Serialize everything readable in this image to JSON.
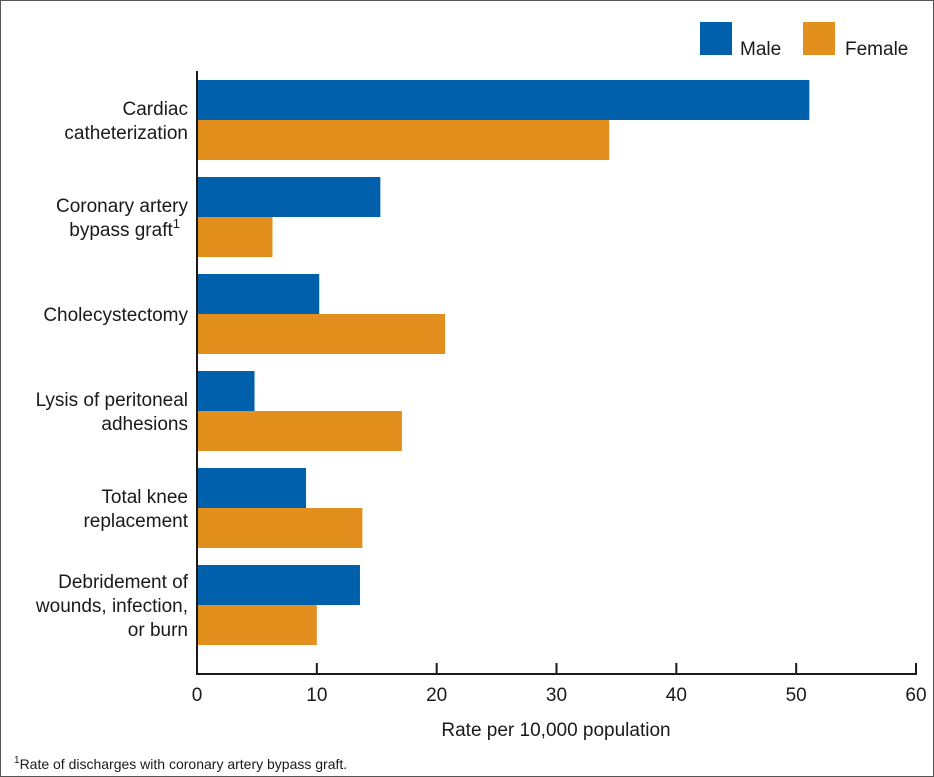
{
  "chart_data": {
    "type": "bar",
    "orientation": "horizontal",
    "categories": [
      [
        "Cardiac",
        "catheterization"
      ],
      [
        "Coronary artery",
        "bypass graft"
      ],
      [
        "Cholecystectomy"
      ],
      [
        "Lysis of peritoneal",
        "adhesions"
      ],
      [
        "Total knee",
        "replacement"
      ],
      [
        "Debridement of",
        "wounds, infection,",
        "or burn"
      ]
    ],
    "category_superscripts": [
      "",
      "1",
      "",
      "",
      "",
      ""
    ],
    "series": [
      {
        "name": "Male",
        "color": "#0060ab",
        "values": [
          51.1,
          15.3,
          10.2,
          4.8,
          9.1,
          13.6
        ]
      },
      {
        "name": "Female",
        "color": "#e28f1e",
        "values": [
          34.4,
          6.3,
          20.7,
          17.1,
          13.8,
          10.0
        ]
      }
    ],
    "xlabel": "Rate per 10,000 population",
    "xlim": [
      0,
      60
    ],
    "xticks": [
      "0",
      "10",
      "20",
      "30",
      "40",
      "50",
      "60"
    ],
    "grid": false,
    "legend_position": "top-right"
  },
  "footnote": {
    "marker": "1",
    "text": "Rate of discharges with coronary artery bypass graft."
  }
}
